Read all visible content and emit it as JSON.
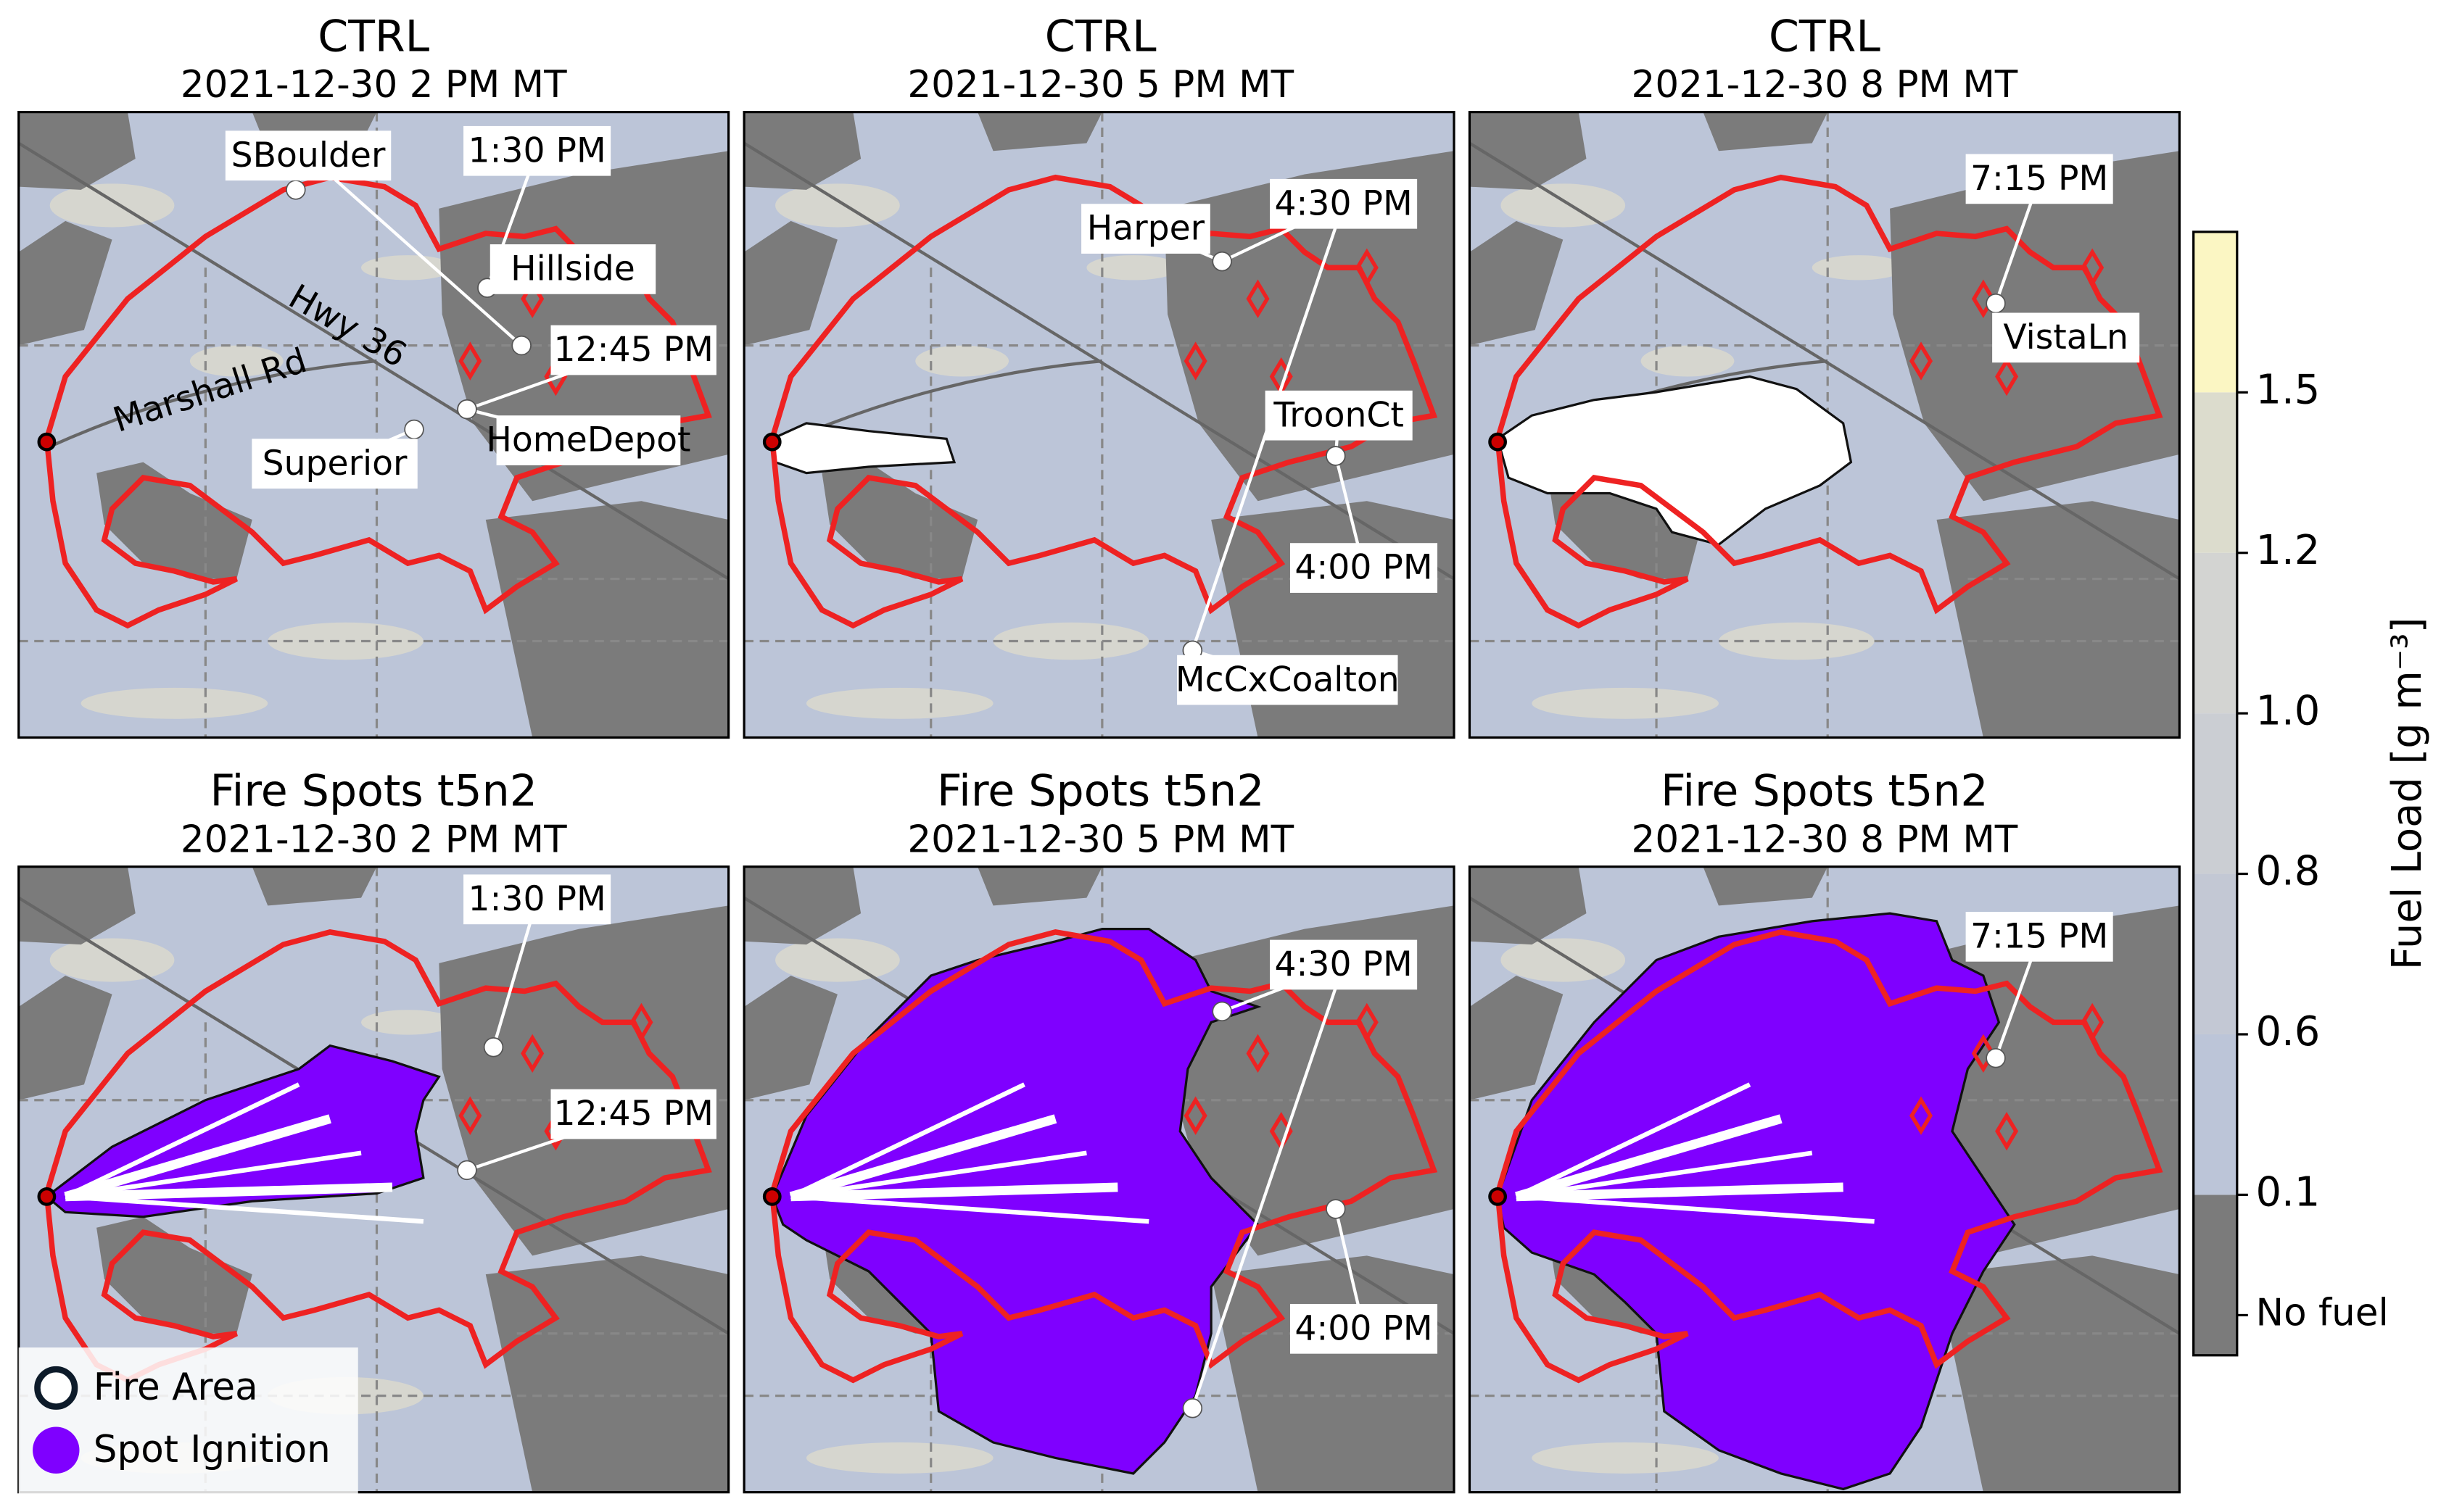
{
  "panels": [
    {
      "title": "CTRL",
      "subtitle": "2021-12-30 2 PM MT",
      "annotations": [
        "SBoulder",
        "1:30 PM",
        "Hillside",
        "12:45 PM",
        "Superior",
        "HomeDepot"
      ],
      "roads": [
        "Hwy 36",
        "Marshall Rd"
      ]
    },
    {
      "title": "CTRL",
      "subtitle": "2021-12-30 5 PM MT",
      "annotations": [
        "Harper",
        "4:30 PM",
        "TroonCt",
        "4:00 PM",
        "McCxCoalton"
      ]
    },
    {
      "title": "CTRL",
      "subtitle": "2021-12-30 8 PM MT",
      "annotations": [
        "7:15 PM",
        "VistaLn"
      ]
    },
    {
      "title": "Fire Spots t5n2",
      "subtitle": "2021-12-30 2 PM MT",
      "annotations": [
        "1:30 PM",
        "12:45 PM"
      ]
    },
    {
      "title": "Fire Spots t5n2",
      "subtitle": "2021-12-30 5 PM MT",
      "annotations": [
        "4:30 PM",
        "4:00 PM"
      ]
    },
    {
      "title": "Fire Spots t5n2",
      "subtitle": "2021-12-30 8 PM MT",
      "annotations": [
        "7:15 PM"
      ]
    }
  ],
  "legend": [
    {
      "label": "Fire Area",
      "color": "#0d1b2a"
    },
    {
      "label": "Spot Ignition",
      "color": "#7f00ff"
    }
  ],
  "colorbar": {
    "label": "Fuel Load [g m⁻³]",
    "boundaries": [
      0,
      0.1,
      0.6,
      0.8,
      1.0,
      1.2,
      1.5,
      1.8
    ],
    "colors": [
      "#7b7b7b",
      "#bcc5d8",
      "#c3c8d4",
      "#cbced3",
      "#d3d4d2",
      "#dcdccd",
      "#fbf6c3"
    ],
    "ticks": [
      {
        "value": 0.025,
        "label": "No fuel"
      },
      0.1,
      0.6,
      0.8,
      {
        "value": 1.0,
        "label": "1.0"
      },
      1.2,
      1.5
    ]
  }
}
